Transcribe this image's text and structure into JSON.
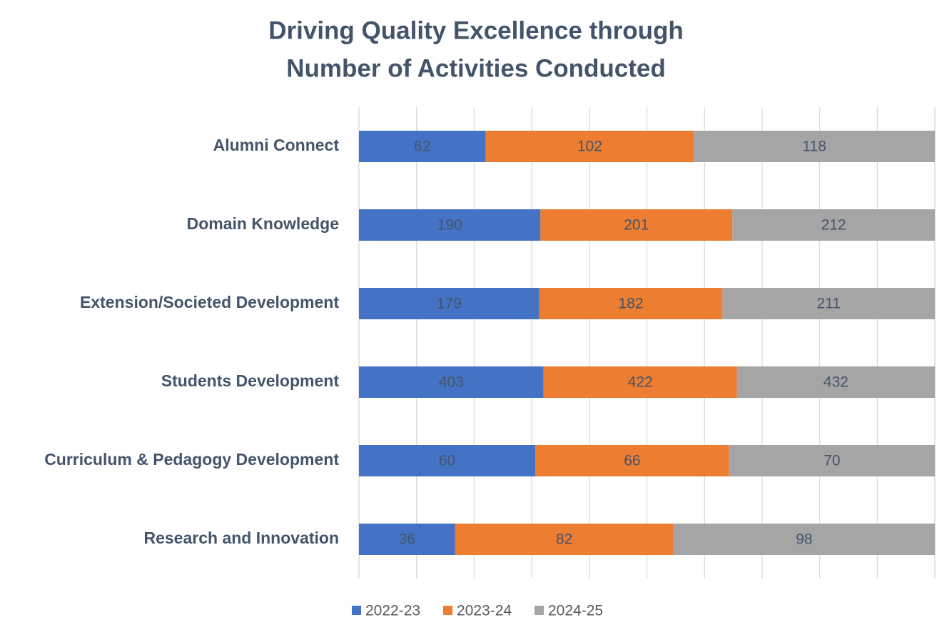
{
  "chart_data": {
    "type": "bar",
    "stacking": "percent",
    "orientation": "horizontal",
    "title": [
      "Driving Quality Excellence through",
      "Number of Activities Conducted"
    ],
    "categories": [
      "Alumni Connect",
      "Domain Knowledge",
      "Extension/Societed Development",
      "Students Development",
      "Curriculum & Pedagogy  Development",
      "Research and Innovation"
    ],
    "series": [
      {
        "name": "2022-23",
        "color": "#4472c4",
        "values": [
          62,
          190,
          179,
          403,
          60,
          36
        ]
      },
      {
        "name": "2023-24",
        "color": "#ed7d31",
        "values": [
          102,
          201,
          182,
          422,
          66,
          82
        ]
      },
      {
        "name": "2024-25",
        "color": "#a5a5a5",
        "values": [
          118,
          212,
          211,
          432,
          70,
          98
        ]
      }
    ],
    "xlim": [
      0,
      100
    ],
    "xticks": [
      0,
      10,
      20,
      30,
      40,
      50,
      60,
      70,
      80,
      90,
      100
    ],
    "grid": true,
    "legend": "bottom"
  }
}
